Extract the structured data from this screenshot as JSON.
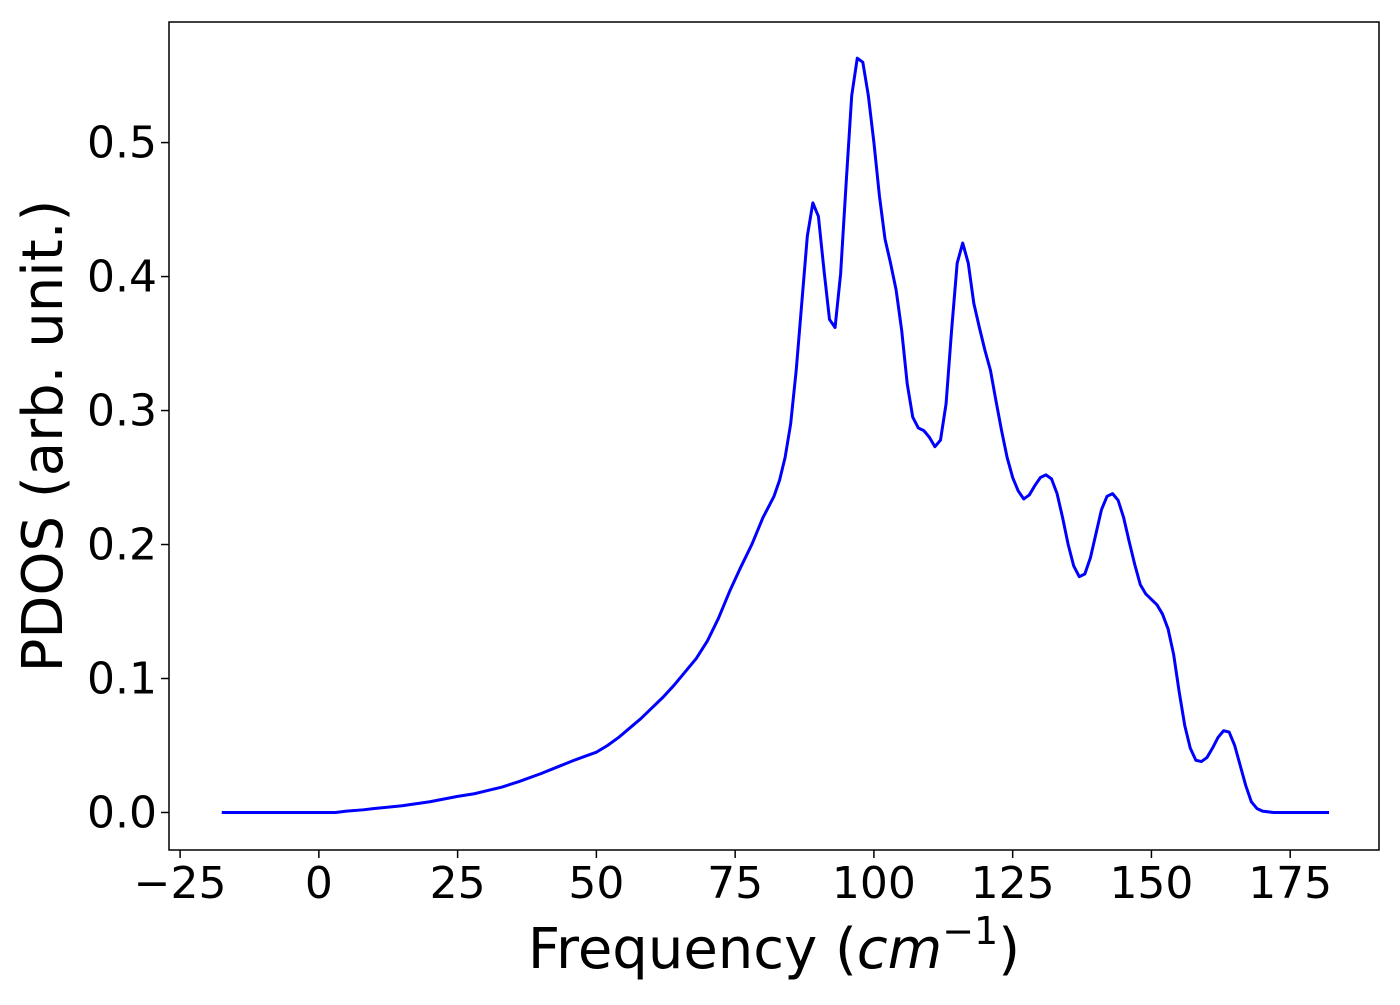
{
  "chart_data": {
    "type": "line",
    "title": "",
    "xlabel": "Frequency (cm⁻¹)",
    "xlabel_text": "Frequency (",
    "xlabel_math": "cm",
    "xlabel_sup": "−1",
    "xlabel_close": ")",
    "ylabel": "PDOS (arb. unit.)",
    "xlim": [
      -27,
      191
    ],
    "ylim": [
      -0.028,
      0.59
    ],
    "x_ticks": [
      -25,
      0,
      25,
      50,
      75,
      100,
      125,
      150,
      175
    ],
    "x_tick_labels": [
      "−25",
      "0",
      "25",
      "50",
      "75",
      "100",
      "125",
      "150",
      "175"
    ],
    "y_ticks": [
      0.0,
      0.1,
      0.2,
      0.3,
      0.4,
      0.5
    ],
    "y_tick_labels": [
      "0.0",
      "0.1",
      "0.2",
      "0.3",
      "0.4",
      "0.5"
    ],
    "grid": false,
    "legend": "none",
    "series": [
      {
        "color": "#0000ff",
        "x": [
          -17.5,
          -10,
          -5,
          0,
          3,
          5,
          8,
          10,
          15,
          20,
          25,
          28,
          30,
          33,
          36,
          40,
          43,
          46,
          48,
          50,
          52,
          54,
          56,
          58,
          60,
          62,
          64,
          66,
          68,
          70,
          72,
          74,
          76,
          78,
          80,
          81,
          82,
          83,
          84,
          85,
          86,
          87,
          88,
          89,
          90,
          91,
          92,
          93,
          94,
          95,
          96,
          97,
          98,
          99,
          100,
          101,
          102,
          103,
          104,
          105,
          106,
          107,
          108,
          109,
          110,
          111,
          112,
          113,
          114,
          115,
          116,
          117,
          118,
          119,
          120,
          121,
          122,
          123,
          124,
          125,
          126,
          127,
          128,
          129,
          130,
          131,
          132,
          133,
          134,
          135,
          136,
          137,
          138,
          139,
          140,
          141,
          142,
          143,
          144,
          145,
          146,
          147,
          148,
          149,
          150,
          151,
          152,
          153,
          154,
          155,
          156,
          157,
          158,
          159,
          160,
          161,
          162,
          163,
          164,
          165,
          166,
          167,
          168,
          169,
          170,
          172,
          175,
          178,
          182
        ],
        "y": [
          0.0,
          0.0,
          0.0,
          0.0,
          0.0,
          0.001,
          0.002,
          0.003,
          0.005,
          0.008,
          0.012,
          0.014,
          0.016,
          0.019,
          0.023,
          0.029,
          0.034,
          0.039,
          0.042,
          0.045,
          0.05,
          0.056,
          0.063,
          0.07,
          0.078,
          0.086,
          0.095,
          0.105,
          0.115,
          0.128,
          0.145,
          0.165,
          0.183,
          0.2,
          0.22,
          0.228,
          0.236,
          0.248,
          0.265,
          0.29,
          0.33,
          0.38,
          0.43,
          0.455,
          0.445,
          0.405,
          0.368,
          0.362,
          0.402,
          0.47,
          0.535,
          0.563,
          0.56,
          0.535,
          0.5,
          0.46,
          0.428,
          0.41,
          0.39,
          0.36,
          0.32,
          0.295,
          0.287,
          0.285,
          0.28,
          0.273,
          0.278,
          0.305,
          0.36,
          0.41,
          0.425,
          0.41,
          0.38,
          0.362,
          0.345,
          0.33,
          0.307,
          0.285,
          0.265,
          0.25,
          0.24,
          0.234,
          0.237,
          0.244,
          0.25,
          0.252,
          0.249,
          0.238,
          0.22,
          0.2,
          0.184,
          0.176,
          0.178,
          0.19,
          0.208,
          0.226,
          0.236,
          0.238,
          0.233,
          0.22,
          0.202,
          0.185,
          0.17,
          0.163,
          0.159,
          0.155,
          0.148,
          0.137,
          0.118,
          0.09,
          0.065,
          0.048,
          0.039,
          0.038,
          0.041,
          0.048,
          0.056,
          0.061,
          0.06,
          0.05,
          0.035,
          0.02,
          0.008,
          0.003,
          0.001,
          0.0,
          0.0,
          0.0,
          0.0
        ]
      }
    ]
  }
}
